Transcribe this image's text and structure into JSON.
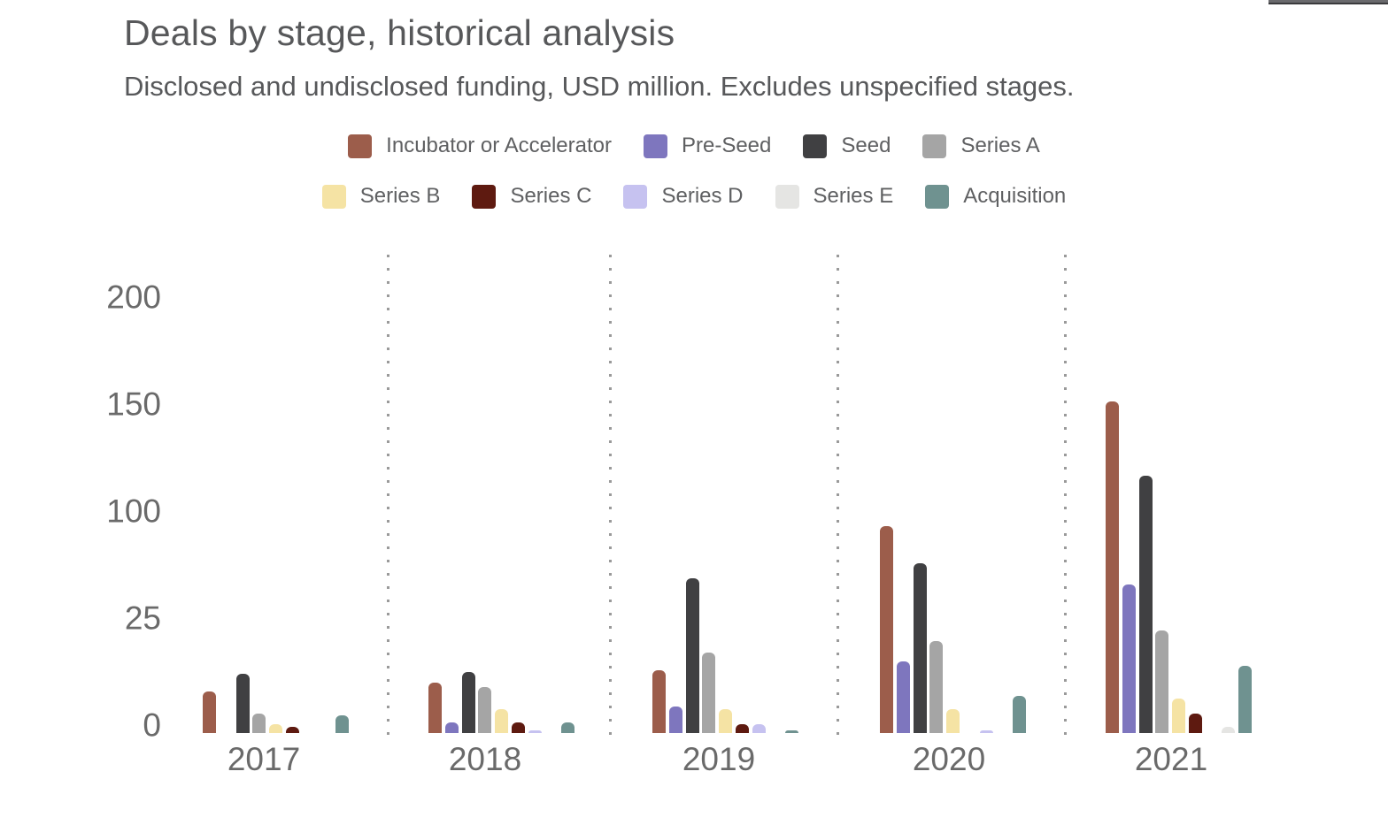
{
  "header": {
    "title": "Deals by stage, historical analysis",
    "subtitle": "Disclosed and undisclosed funding, USD million. Excludes unspecified stages."
  },
  "chart_data": {
    "type": "bar",
    "title": "Deals by stage, historical analysis",
    "subtitle": "Disclosed and undisclosed funding, USD million. Excludes unspecified stages.",
    "categories": [
      "2017",
      "2018",
      "2019",
      "2020",
      "2021"
    ],
    "series": [
      {
        "name": "Incubator or Accelerator",
        "color": "#9C5D4B",
        "values": [
          19,
          23,
          29,
          95,
          152
        ]
      },
      {
        "name": "Pre-Seed",
        "color": "#7E76BE",
        "values": [
          0,
          5,
          12,
          33,
          68
        ]
      },
      {
        "name": "Seed",
        "color": "#404042",
        "values": [
          27,
          28,
          71,
          78,
          118
        ]
      },
      {
        "name": "Series A",
        "color": "#A5A5A5",
        "values": [
          9,
          21,
          37,
          42,
          47
        ]
      },
      {
        "name": "Series B",
        "color": "#F5E3A4",
        "values": [
          4,
          11,
          11,
          11,
          16
        ]
      },
      {
        "name": "Series C",
        "color": "#5E1A10",
        "values": [
          3,
          5,
          4,
          0,
          9
        ]
      },
      {
        "name": "Series D",
        "color": "#C6C2F0",
        "values": [
          0,
          1,
          4,
          1,
          0
        ]
      },
      {
        "name": "Series E",
        "color": "#E5E5E3",
        "values": [
          0,
          0,
          0,
          0,
          3
        ]
      },
      {
        "name": "Acquisition",
        "color": "#6F9290",
        "values": [
          8,
          5,
          1,
          17,
          31
        ]
      }
    ],
    "y_ticks": [
      "200",
      "150",
      "100",
      "25",
      "0"
    ],
    "ylim": [
      0,
      200
    ],
    "xlabel": "",
    "ylabel": "",
    "legend_position": "top, two rows (4 items / 5 items)",
    "grid": "no horizontal gridlines; dotted vertical separators between year groups"
  },
  "colors": {
    "background": "#ffffff",
    "title_text": "#57585a",
    "axis_text": "#6a6a6a",
    "legend_text": "#5f6062",
    "separator_dots": "#9a9a9a",
    "edge_strip": "#6a6a6d"
  }
}
